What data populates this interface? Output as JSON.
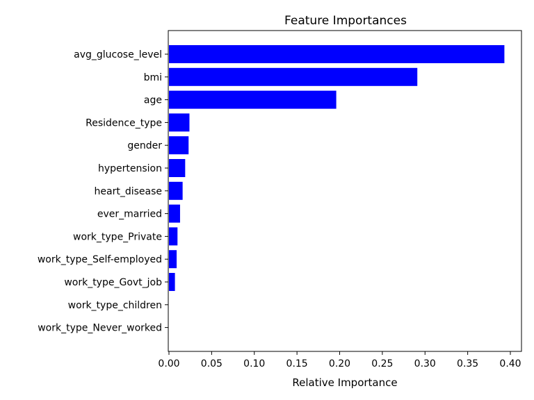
{
  "chart_data": {
    "type": "bar",
    "orientation": "horizontal",
    "title": "Feature Importances",
    "xlabel": "Relative Importance",
    "ylabel": "",
    "xlim": [
      0,
      0.405
    ],
    "xticks": [
      "0.00",
      "0.05",
      "0.10",
      "0.15",
      "0.20",
      "0.25",
      "0.30",
      "0.35",
      "0.40"
    ],
    "categories": [
      "avg_glucose_level",
      "bmi",
      "age",
      "Residence_type",
      "gender",
      "hypertension",
      "heart_disease",
      "ever_married",
      "work_type_Private",
      "work_type_Self-employed",
      "work_type_Govt_job",
      "work_type_children",
      "work_type_Never_worked"
    ],
    "values": [
      0.393,
      0.291,
      0.196,
      0.024,
      0.023,
      0.019,
      0.016,
      0.013,
      0.01,
      0.009,
      0.007,
      0.0,
      0.0
    ],
    "bar_color": "#0000ff",
    "grid": false,
    "legend": "none"
  }
}
